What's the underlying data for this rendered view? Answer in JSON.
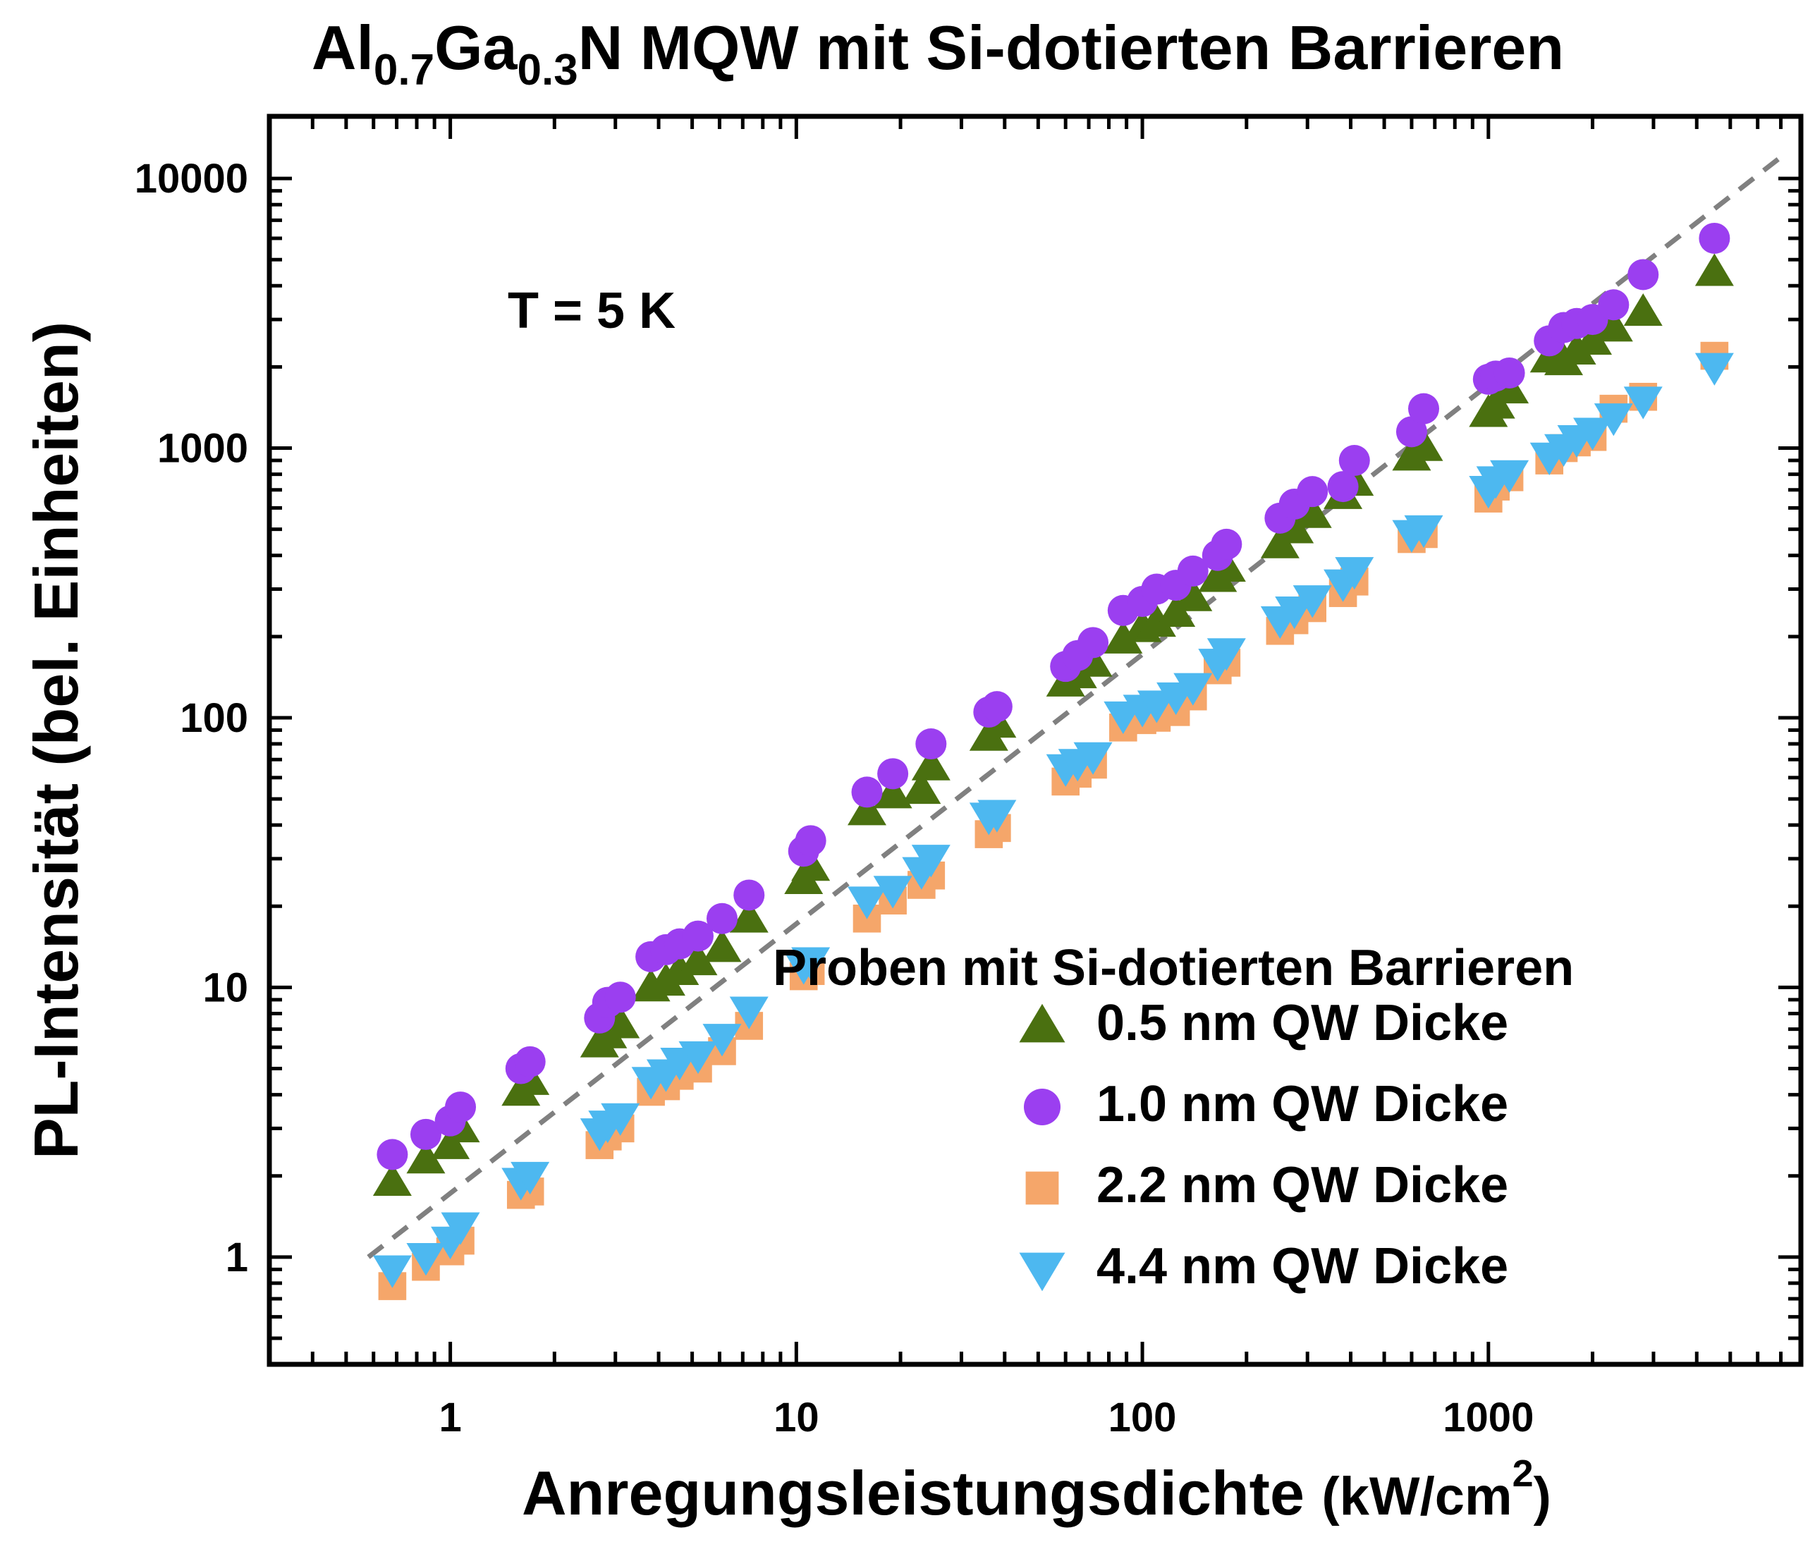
{
  "chart_data": {
    "type": "scatter",
    "title": {
      "parts": [
        {
          "text": "Al",
          "sub": false
        },
        {
          "text": "0.7",
          "sub": true
        },
        {
          "text": "Ga",
          "sub": false
        },
        {
          "text": "0.3",
          "sub": true
        },
        {
          "text": "N MQW mit Si-dotierten Barrieren",
          "sub": false
        }
      ]
    },
    "xlabel": {
      "main": "Anregungsleistungsdichte ",
      "unit_pre": "(kW/cm",
      "unit_sup": "2",
      "unit_post": ")"
    },
    "ylabel": "PL-Intensität (bel. Einheiten)",
    "annotation": "T = 5 K",
    "xscale": "log",
    "yscale": "log",
    "xlim": [
      0.3,
      8000
    ],
    "ylim": [
      0.4,
      17000
    ],
    "xticks": [
      1,
      10,
      100,
      1000
    ],
    "xtick_labels": [
      "1",
      "10",
      "100",
      "1000"
    ],
    "yticks": [
      1,
      10,
      100,
      1000,
      10000
    ],
    "ytick_labels": [
      "1",
      "10",
      "100",
      "1000",
      "10000"
    ],
    "grid": false,
    "legend": {
      "title": "Proben mit Si-dotierten Barrieren",
      "position": "lower-right"
    },
    "reference_line": {
      "style": "dashed",
      "color": "#808080",
      "x": [
        0.58,
        7000
      ],
      "y": [
        1.0,
        12000
      ]
    },
    "series": [
      {
        "name": "0.5 nm QW Dicke",
        "marker": "triangle-up",
        "color": "#4a7010",
        "x": [
          0.68,
          0.85,
          1.0,
          1.07,
          1.6,
          1.7,
          2.7,
          2.85,
          3.1,
          3.8,
          4.2,
          4.6,
          5.2,
          6.1,
          7.3,
          10.5,
          11.0,
          16.0,
          19.0,
          23.0,
          24.5,
          36.0,
          38.0,
          60.0,
          65.0,
          72.0,
          88.0,
          100.0,
          110.0,
          125.0,
          140.0,
          165.0,
          175.0,
          250.0,
          275.0,
          310.0,
          380.0,
          410.0,
          600.0,
          650.0,
          1000.0,
          1050.0,
          1150.0,
          1500.0,
          1650.0,
          1800.0,
          2000.0,
          2300.0,
          2800.0,
          4500.0
        ],
        "y": [
          1.9,
          2.3,
          2.6,
          3.0,
          4.1,
          4.5,
          6.2,
          6.7,
          7.3,
          10.0,
          10.5,
          11.5,
          12.5,
          14.0,
          18.0,
          25.0,
          28.0,
          45.0,
          52.0,
          54.0,
          66.0,
          85.0,
          95.0,
          135.0,
          145.0,
          160.0,
          195.0,
          215.0,
          225.0,
          245.0,
          280.0,
          330.0,
          360.0,
          440.0,
          500.0,
          570.0,
          670.0,
          750.0,
          930.0,
          1010.0,
          1350.0,
          1450.0,
          1650.0,
          2150.0,
          2100.0,
          2300.0,
          2500.0,
          2800.0,
          3200.0,
          4500.0
        ]
      },
      {
        "name": "1.0 nm QW Dicke",
        "marker": "circle",
        "color": "#9b3ff0",
        "x": [
          0.68,
          0.85,
          1.0,
          1.07,
          1.6,
          1.7,
          2.7,
          2.85,
          3.1,
          3.8,
          4.2,
          4.6,
          5.2,
          6.1,
          7.3,
          10.5,
          11.0,
          16.0,
          19.0,
          24.5,
          36.0,
          38.0,
          60.0,
          65.0,
          72.0,
          88.0,
          100.0,
          110.0,
          125.0,
          140.0,
          165.0,
          175.0,
          250.0,
          275.0,
          310.0,
          380.0,
          410.0,
          600.0,
          650.0,
          1000.0,
          1050.0,
          1150.0,
          1500.0,
          1650.0,
          1800.0,
          2000.0,
          2300.0,
          2800.0,
          4500.0
        ],
        "y": [
          2.4,
          2.85,
          3.2,
          3.6,
          5.0,
          5.3,
          7.7,
          8.8,
          9.2,
          13.0,
          13.8,
          14.5,
          15.5,
          18.0,
          22.0,
          32.0,
          35.0,
          53.0,
          62.0,
          80.0,
          105.0,
          110.0,
          155.0,
          170.0,
          190.0,
          250.0,
          270.0,
          300.0,
          310.0,
          350.0,
          400.0,
          440.0,
          550.0,
          620.0,
          690.0,
          720.0,
          900.0,
          1150.0,
          1400.0,
          1800.0,
          1850.0,
          1900.0,
          2500.0,
          2800.0,
          2900.0,
          3000.0,
          3400.0,
          4400.0,
          6000.0
        ]
      },
      {
        "name": "2.2 nm QW Dicke",
        "marker": "square",
        "color": "#f5a66a",
        "x": [
          0.68,
          0.85,
          1.0,
          1.07,
          1.6,
          1.7,
          2.7,
          2.85,
          3.1,
          3.8,
          4.2,
          4.6,
          5.2,
          6.1,
          7.3,
          10.5,
          11.0,
          16.0,
          19.0,
          23.0,
          24.5,
          36.0,
          38.0,
          60.0,
          65.0,
          72.0,
          88.0,
          100.0,
          110.0,
          125.0,
          140.0,
          165.0,
          175.0,
          250.0,
          275.0,
          310.0,
          380.0,
          410.0,
          600.0,
          650.0,
          1000.0,
          1050.0,
          1150.0,
          1500.0,
          1650.0,
          1800.0,
          2000.0,
          2300.0,
          2800.0,
          4500.0
        ],
        "y": [
          0.78,
          0.92,
          1.05,
          1.15,
          1.7,
          1.75,
          2.6,
          2.8,
          3.0,
          4.1,
          4.3,
          4.7,
          5.0,
          5.8,
          7.2,
          11.0,
          11.5,
          18.0,
          21.0,
          24.0,
          26.0,
          37.0,
          39.0,
          58.0,
          62.0,
          67.0,
          92.0,
          98.0,
          100.0,
          105.0,
          120.0,
          150.0,
          160.0,
          210.0,
          230.0,
          255.0,
          290.0,
          320.0,
          460.0,
          480.0,
          650.0,
          720.0,
          780.0,
          900.0,
          1000.0,
          1050.0,
          1100.0,
          1400.0,
          1550.0,
          2200.0
        ]
      },
      {
        "name": "4.4 nm QW Dicke",
        "marker": "triangle-down",
        "color": "#4db8f0",
        "x": [
          0.68,
          0.85,
          1.0,
          1.07,
          1.6,
          1.7,
          2.7,
          2.85,
          3.1,
          3.8,
          4.2,
          4.6,
          5.2,
          6.1,
          7.3,
          10.5,
          11.0,
          16.0,
          19.0,
          23.0,
          24.5,
          36.0,
          38.0,
          60.0,
          65.0,
          72.0,
          88.0,
          100.0,
          110.0,
          125.0,
          140.0,
          165.0,
          175.0,
          250.0,
          275.0,
          310.0,
          380.0,
          410.0,
          600.0,
          650.0,
          1000.0,
          1050.0,
          1150.0,
          1500.0,
          1650.0,
          1800.0,
          2000.0,
          2300.0,
          2800.0,
          4500.0
        ],
        "y": [
          0.9,
          1.0,
          1.15,
          1.3,
          1.9,
          2.0,
          2.9,
          3.1,
          3.3,
          4.5,
          4.8,
          5.3,
          5.6,
          6.5,
          8.2,
          12.0,
          12.5,
          21.0,
          23.0,
          27.0,
          30.0,
          43.0,
          44.0,
          65.0,
          68.0,
          72.0,
          102.0,
          108.0,
          112.0,
          120.0,
          130.0,
          160.0,
          175.0,
          230.0,
          250.0,
          275.0,
          315.0,
          350.0,
          480.0,
          500.0,
          700.0,
          760.0,
          800.0,
          930.0,
          1000.0,
          1080.0,
          1150.0,
          1300.0,
          1500.0,
          2000.0
        ]
      }
    ]
  }
}
